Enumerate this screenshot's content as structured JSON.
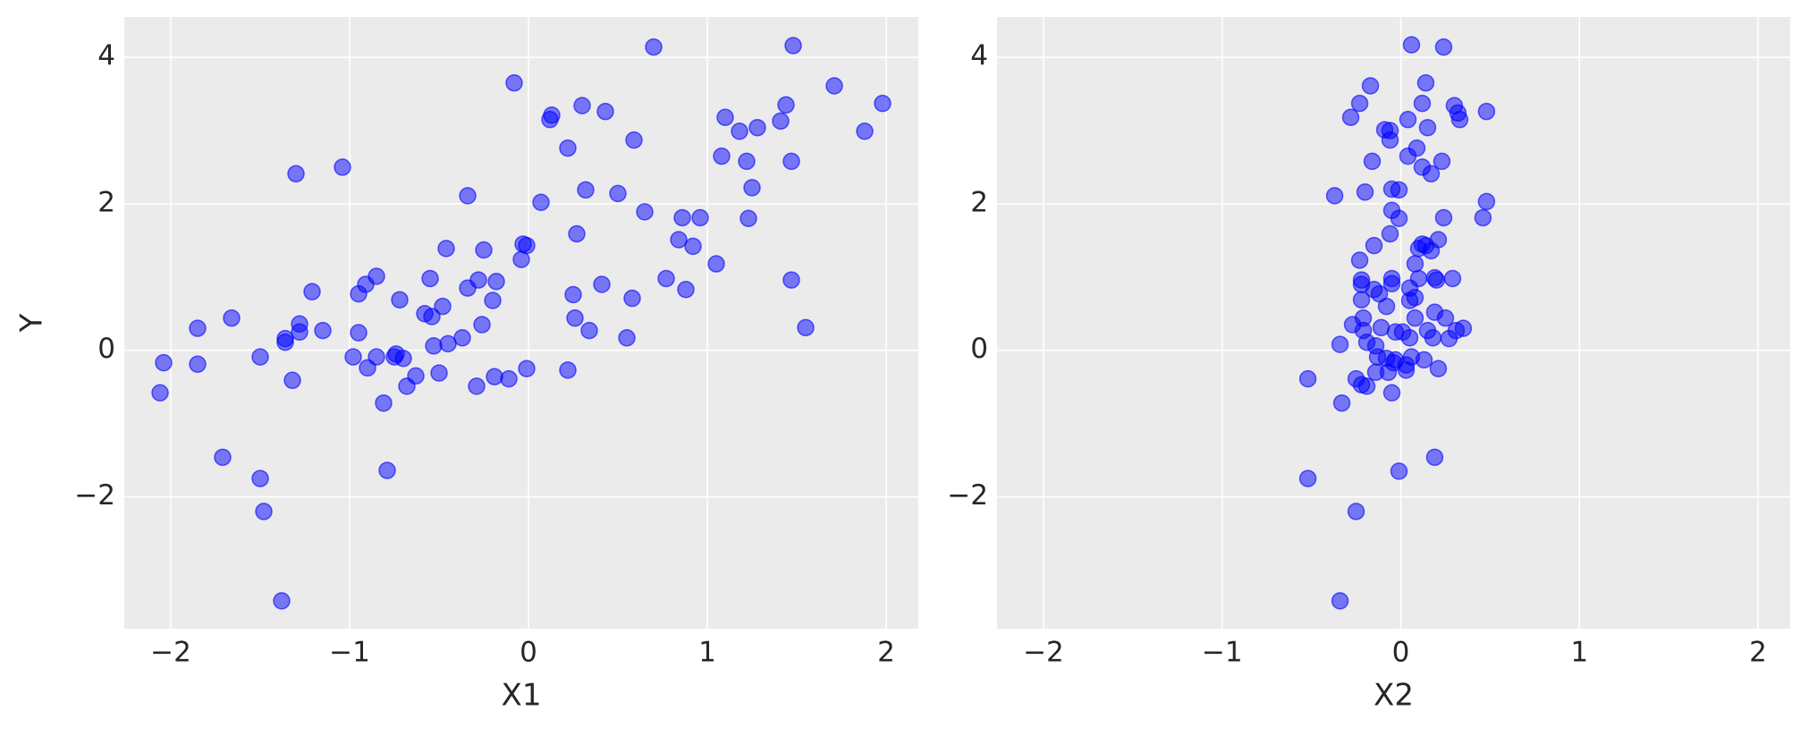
{
  "chart_data": [
    {
      "type": "scatter",
      "x_label": "X1",
      "y_label": "Y",
      "color": "#0000ff",
      "grid": true,
      "xlim": [
        -2.26,
        2.18
      ],
      "ylim": [
        -3.8,
        4.55
      ],
      "xticks": [
        {
          "value": -2,
          "label": "−2"
        },
        {
          "value": -1,
          "label": "−1"
        },
        0,
        1,
        2
      ],
      "yticks": [
        {
          "value": -2,
          "label": "−2"
        },
        0,
        2,
        4
      ],
      "x": [
        -2.06,
        -2.04,
        -1.85,
        -1.85,
        -1.66,
        -1.71,
        -1.5,
        -1.5,
        -1.48,
        -1.38,
        -1.36,
        -1.36,
        -1.32,
        -1.3,
        -1.28,
        -1.28,
        -1.21,
        -1.15,
        -1.04,
        -0.98,
        -0.95,
        -0.95,
        -0.91,
        -0.9,
        -0.85,
        -0.85,
        -0.81,
        -0.79,
        -0.75,
        -0.74,
        -0.72,
        -0.7,
        -0.68,
        -0.63,
        -0.58,
        -0.55,
        -0.54,
        -0.53,
        -0.5,
        -0.48,
        -0.46,
        -0.45,
        -0.37,
        -0.34,
        -0.34,
        -0.29,
        -0.28,
        -0.26,
        -0.25,
        -0.2,
        -0.19,
        -0.18,
        -0.11,
        -0.08,
        -0.04,
        -0.03,
        -0.01,
        -0.01,
        0.07,
        0.12,
        0.13,
        0.22,
        0.22,
        0.25,
        0.26,
        0.27,
        0.3,
        0.32,
        0.34,
        0.41,
        0.43,
        0.5,
        0.55,
        0.58,
        0.59,
        0.65,
        0.7,
        0.77,
        0.84,
        0.86,
        0.88,
        0.92,
        0.96,
        1.05,
        1.08,
        1.1,
        1.18,
        1.22,
        1.23,
        1.25,
        1.28,
        1.41,
        1.44,
        1.47,
        1.47,
        1.48,
        1.55,
        1.71,
        1.88,
        1.98
      ],
      "values": [
        -0.58,
        -0.17,
        0.3,
        -0.19,
        0.44,
        -1.46,
        -0.09,
        -1.75,
        -2.2,
        -3.42,
        0.16,
        0.11,
        -0.41,
        2.41,
        0.36,
        0.25,
        0.8,
        0.27,
        2.5,
        -0.09,
        0.24,
        0.77,
        0.9,
        -0.24,
        1.01,
        -0.09,
        -0.72,
        -1.64,
        -0.09,
        -0.05,
        0.69,
        -0.11,
        -0.49,
        -0.35,
        0.5,
        0.98,
        0.46,
        0.06,
        -0.31,
        0.6,
        1.39,
        0.09,
        0.17,
        2.11,
        0.85,
        -0.49,
        0.96,
        0.35,
        1.37,
        0.68,
        -0.36,
        0.94,
        -0.39,
        3.65,
        1.24,
        1.45,
        1.43,
        -0.25,
        2.02,
        3.15,
        3.21,
        2.76,
        -0.27,
        0.76,
        0.44,
        1.59,
        3.34,
        2.19,
        0.27,
        0.9,
        3.26,
        2.14,
        0.17,
        0.71,
        2.87,
        1.89,
        4.14,
        0.98,
        1.51,
        1.81,
        0.83,
        1.42,
        1.81,
        1.18,
        2.65,
        3.18,
        2.99,
        2.58,
        1.8,
        2.22,
        3.04,
        3.13,
        3.35,
        2.58,
        0.96,
        4.16,
        0.31,
        3.61,
        2.99,
        3.37
      ]
    },
    {
      "type": "scatter",
      "x_label": "X2",
      "color": "#0000ff",
      "grid": true,
      "xlim": [
        -2.26,
        2.18
      ],
      "ylim": [
        -3.8,
        4.55
      ],
      "xticks": [
        {
          "value": -2,
          "label": "−2"
        },
        {
          "value": -1,
          "label": "−1"
        },
        0,
        1,
        2
      ],
      "yticks": [
        {
          "value": -2,
          "label": "−2"
        },
        0,
        2,
        4
      ],
      "x": [
        -0.52,
        -0.52,
        -0.37,
        -0.34,
        -0.33,
        -0.34,
        -0.28,
        -0.27,
        -0.25,
        -0.25,
        -0.23,
        -0.23,
        -0.22,
        -0.22,
        -0.22,
        -0.22,
        -0.21,
        -0.21,
        -0.2,
        -0.19,
        -0.19,
        -0.17,
        -0.16,
        -0.15,
        -0.15,
        -0.14,
        -0.14,
        -0.13,
        -0.12,
        -0.11,
        -0.09,
        -0.08,
        -0.08,
        -0.07,
        -0.06,
        -0.06,
        -0.06,
        -0.05,
        -0.05,
        -0.05,
        -0.05,
        -0.05,
        -0.04,
        -0.03,
        -0.03,
        -0.01,
        -0.01,
        -0.01,
        0.01,
        0.03,
        0.03,
        0.04,
        0.04,
        0.05,
        0.05,
        0.05,
        0.06,
        0.06,
        0.08,
        0.08,
        0.08,
        0.09,
        0.1,
        0.1,
        0.12,
        0.12,
        0.12,
        0.13,
        0.14,
        0.14,
        0.15,
        0.15,
        0.17,
        0.17,
        0.18,
        0.19,
        0.19,
        0.19,
        0.2,
        0.21,
        0.21,
        0.23,
        0.24,
        0.24,
        0.25,
        0.27,
        0.29,
        0.3,
        0.31,
        0.32,
        0.33,
        0.35,
        0.46,
        0.48,
        0.48
      ],
      "values": [
        -1.75,
        -0.39,
        2.11,
        0.08,
        -0.72,
        -3.42,
        3.18,
        0.35,
        -2.2,
        -0.39,
        1.23,
        3.37,
        -0.47,
        0.9,
        0.96,
        0.69,
        0.44,
        0.27,
        2.16,
        0.11,
        -0.49,
        3.61,
        2.58,
        1.43,
        0.83,
        -0.3,
        0.06,
        -0.09,
        0.77,
        0.31,
        3.01,
        0.6,
        -0.11,
        -0.3,
        1.59,
        2.87,
        3.0,
        1.91,
        2.2,
        -0.58,
        0.91,
        0.98,
        -0.17,
        0.25,
        -0.13,
        2.19,
        1.8,
        -1.65,
        0.25,
        -0.27,
        -0.2,
        3.15,
        2.65,
        0.85,
        0.68,
        0.17,
        -0.09,
        4.17,
        1.18,
        0.72,
        0.44,
        2.76,
        1.39,
        0.98,
        3.37,
        1.45,
        2.5,
        -0.13,
        1.43,
        3.65,
        3.04,
        0.27,
        2.41,
        1.36,
        0.17,
        0.52,
        0.99,
        -1.46,
        0.96,
        1.51,
        -0.25,
        2.58,
        1.81,
        4.14,
        0.44,
        0.16,
        0.98,
        3.34,
        0.27,
        3.24,
        3.15,
        0.3,
        1.81,
        2.03,
        3.26
      ]
    }
  ]
}
